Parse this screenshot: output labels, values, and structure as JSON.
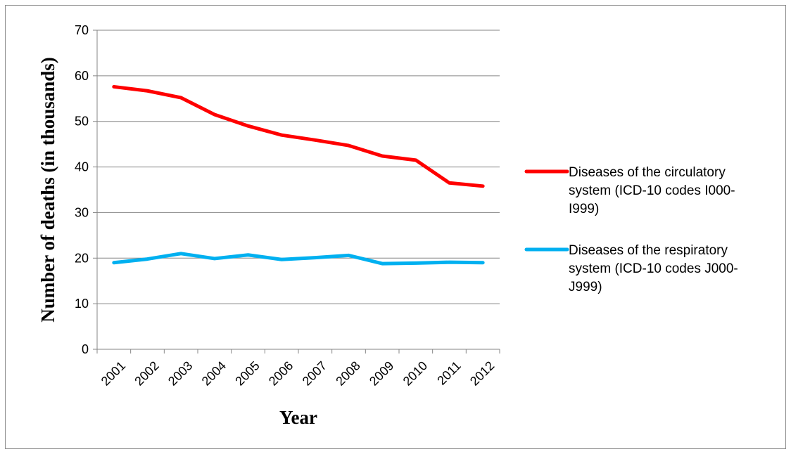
{
  "chart_data": {
    "type": "line",
    "title": "",
    "xlabel": "Year",
    "ylabel": "Number of deaths (in thousands)",
    "categories": [
      "2001",
      "2002",
      "2003",
      "2004",
      "2005",
      "2006",
      "2007",
      "2008",
      "2009",
      "2010",
      "2011",
      "2012"
    ],
    "ylim": [
      0,
      70
    ],
    "yticks": [
      0,
      10,
      20,
      30,
      40,
      50,
      60,
      70
    ],
    "grid": "horizontal",
    "legend_position": "right",
    "series": [
      {
        "name_lines": [
          "Diseases of the circulatory",
          "system (ICD-10 codes I000-",
          "I999)"
        ],
        "color": "#ff0000",
        "values": [
          57.6,
          56.7,
          55.2,
          51.5,
          49.0,
          47.0,
          45.9,
          44.7,
          42.4,
          41.5,
          36.5,
          35.8
        ]
      },
      {
        "name_lines": [
          "Diseases of the respiratory",
          "system (ICD-10 codes J000-",
          "J999)"
        ],
        "color": "#00b0f0",
        "values": [
          19.0,
          19.8,
          21.0,
          19.9,
          20.7,
          19.7,
          20.1,
          20.6,
          18.8,
          18.9,
          19.1,
          19.0
        ]
      }
    ]
  }
}
